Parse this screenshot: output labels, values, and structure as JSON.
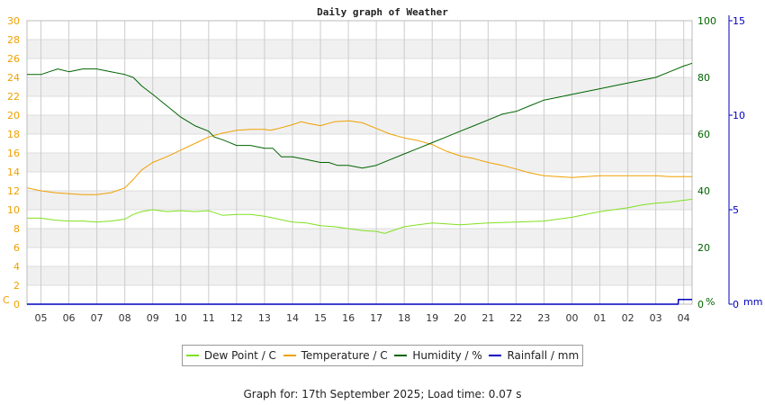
{
  "chart_data": {
    "type": "line",
    "title": "Daily graph of Weather",
    "x_ticks": [
      "05",
      "06",
      "07",
      "08",
      "09",
      "10",
      "11",
      "12",
      "13",
      "14",
      "15",
      "16",
      "17",
      "18",
      "19",
      "20",
      "21",
      "22",
      "23",
      "00",
      "01",
      "02",
      "03",
      "04"
    ],
    "left_axis": {
      "unit_label": "C",
      "range": [
        0,
        30
      ],
      "ticks": [
        0,
        2,
        4,
        6,
        8,
        10,
        12,
        14,
        16,
        18,
        20,
        22,
        24,
        26,
        28,
        30
      ],
      "color": "#f0a000"
    },
    "right_axis_1": {
      "unit_label": "%",
      "range": [
        0,
        100
      ],
      "ticks": [
        0,
        20,
        40,
        60,
        80,
        100
      ],
      "color": "#006400"
    },
    "right_axis_2": {
      "unit_label": "mm",
      "range": [
        0,
        15
      ],
      "ticks": [
        0,
        5,
        10,
        15
      ],
      "color": "#0000c0"
    },
    "grid": true,
    "legend_position": "bottom",
    "series": [
      {
        "name": "Dew Point / C",
        "axis": "left",
        "color": "#80e020",
        "x": [
          4.5,
          5,
          5.5,
          6,
          6.5,
          7,
          7.5,
          8,
          8.3,
          8.6,
          9,
          9.5,
          10,
          10.5,
          11,
          11.2,
          11.5,
          12,
          12.5,
          13,
          13.5,
          14,
          14.5,
          15,
          15.5,
          16,
          16.5,
          17,
          17.3,
          17.6,
          18,
          18.5,
          19,
          19.5,
          20,
          20.5,
          21,
          22,
          23,
          23.5,
          24,
          24.5,
          25,
          25.5,
          26,
          26.5,
          27,
          27.5,
          28,
          28.3
        ],
        "y": [
          9.1,
          9.1,
          8.9,
          8.8,
          8.8,
          8.7,
          8.8,
          9.0,
          9.5,
          9.8,
          10.0,
          9.8,
          9.9,
          9.8,
          9.9,
          9.7,
          9.4,
          9.5,
          9.5,
          9.3,
          9.0,
          8.7,
          8.6,
          8.3,
          8.2,
          8.0,
          7.8,
          7.7,
          7.5,
          7.8,
          8.2,
          8.4,
          8.6,
          8.5,
          8.4,
          8.5,
          8.6,
          8.7,
          8.8,
          9.0,
          9.2,
          9.5,
          9.8,
          10.0,
          10.2,
          10.5,
          10.7,
          10.8,
          11.0,
          11.1
        ]
      },
      {
        "name": "Temperature / C",
        "axis": "left",
        "color": "#f0a000",
        "x": [
          4.5,
          5,
          5.5,
          6,
          6.5,
          7,
          7.5,
          8,
          8.3,
          8.6,
          9,
          9.5,
          10,
          10.5,
          11,
          11.5,
          12,
          12.5,
          13,
          13.2,
          13.5,
          14,
          14.3,
          14.6,
          15,
          15.5,
          16,
          16.5,
          17,
          17.5,
          18,
          18.5,
          19,
          19.5,
          20,
          20.5,
          21,
          21.5,
          22,
          22.5,
          23,
          23.5,
          24,
          24.5,
          25,
          25.5,
          26,
          26.5,
          27,
          27.5,
          28,
          28.3
        ],
        "y": [
          12.3,
          12.0,
          11.8,
          11.7,
          11.6,
          11.6,
          11.8,
          12.3,
          13.2,
          14.2,
          15.0,
          15.6,
          16.3,
          17.0,
          17.7,
          18.1,
          18.4,
          18.5,
          18.5,
          18.4,
          18.6,
          19.0,
          19.3,
          19.1,
          18.9,
          19.3,
          19.4,
          19.2,
          18.6,
          18.0,
          17.6,
          17.3,
          16.9,
          16.2,
          15.7,
          15.4,
          15.0,
          14.7,
          14.3,
          13.9,
          13.6,
          13.5,
          13.4,
          13.5,
          13.6,
          13.6,
          13.6,
          13.6,
          13.6,
          13.5,
          13.5,
          13.5
        ]
      },
      {
        "name": "Humidity / %",
        "axis": "right_1",
        "color": "#006400",
        "x": [
          4.5,
          5,
          5.3,
          5.6,
          6,
          6.5,
          7,
          7.5,
          8,
          8.3,
          8.6,
          9,
          9.5,
          10,
          10.5,
          11,
          11.2,
          11.5,
          12,
          12.5,
          13,
          13.3,
          13.6,
          14,
          14.5,
          15,
          15.3,
          15.6,
          16,
          16.5,
          17,
          17.5,
          18,
          18.5,
          19,
          19.5,
          20,
          20.5,
          21,
          21.5,
          22,
          22.5,
          23,
          23.5,
          24,
          24.5,
          25,
          25.5,
          26,
          26.5,
          27,
          27.5,
          28,
          28.3
        ],
        "y": [
          81,
          81,
          82,
          83,
          82,
          83,
          83,
          82,
          81,
          80,
          77,
          74,
          70,
          66,
          63,
          61,
          59,
          58,
          56,
          56,
          55,
          55,
          52,
          52,
          51,
          50,
          50,
          49,
          49,
          48,
          49,
          51,
          53,
          55,
          57,
          59,
          61,
          63,
          65,
          67,
          68,
          70,
          72,
          73,
          74,
          75,
          76,
          77,
          78,
          79,
          80,
          82,
          84,
          85
        ]
      },
      {
        "name": "Rainfall / mm",
        "axis": "right_2",
        "color": "#0000c0",
        "x": [
          4.5,
          27.8,
          27.81,
          28.3
        ],
        "y": [
          0,
          0,
          0.25,
          0.25
        ]
      }
    ],
    "footer": "Graph for: 17th September 2025; Load time: 0.07 s"
  }
}
